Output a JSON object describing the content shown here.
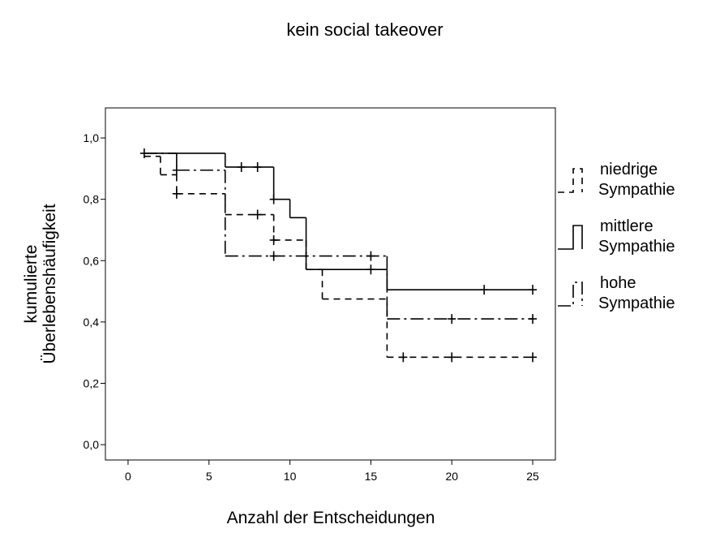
{
  "chart_data": {
    "type": "survival",
    "title": "kein social takeover",
    "xlabel": "Anzahl der Entscheidungen",
    "ylabel": [
      "kumulierte",
      "Überlebenshäufigkeit"
    ],
    "xlim": [
      -1.4,
      26.4
    ],
    "ylim": [
      -0.05,
      1.098
    ],
    "xticks": [
      0,
      5,
      10,
      15,
      20,
      25
    ],
    "yticks": [
      {
        "value": 0,
        "label": "0,0"
      },
      {
        "value": 0.2,
        "label": "0,2"
      },
      {
        "value": 0.4,
        "label": "0,4"
      },
      {
        "value": 0.6,
        "label": "0,6"
      },
      {
        "value": 0.8,
        "label": "0,8"
      },
      {
        "value": 1,
        "label": "1,0"
      }
    ],
    "series": [
      {
        "name": "niedrige Sympathie",
        "color": "#000000",
        "style": "dashed",
        "x": [
          1,
          2,
          3,
          6,
          9,
          11,
          12,
          16
        ],
        "values": [
          0.94,
          0.88,
          0.818,
          0.75,
          0.667,
          0.571,
          0.475,
          0.285
        ],
        "censor_x": [
          3,
          8,
          9,
          17,
          20,
          25
        ],
        "censor_values": [
          0.818,
          0.75,
          0.667,
          0.285,
          0.285,
          0.285
        ]
      },
      {
        "name": "mittlere Sympathie",
        "color": "#000000",
        "style": "solid",
        "x": [
          1,
          6,
          9,
          10,
          11,
          16
        ],
        "values": [
          0.95,
          0.905,
          0.8,
          0.74,
          0.571,
          0.505
        ],
        "censor_x": [
          7,
          8,
          9,
          15,
          22,
          25
        ],
        "censor_values": [
          0.905,
          0.905,
          0.8,
          0.571,
          0.505,
          0.505
        ]
      },
      {
        "name": "hohe Sympathie",
        "color": "#000000",
        "style": "dashdot",
        "x": [
          1,
          3,
          6,
          16
        ],
        "values": [
          0.95,
          0.895,
          0.615,
          0.41
        ],
        "censor_x": [
          1,
          3,
          9,
          15,
          20,
          25
        ],
        "censor_values": [
          0.95,
          0.895,
          0.615,
          0.615,
          0.41,
          0.41
        ]
      }
    ]
  }
}
